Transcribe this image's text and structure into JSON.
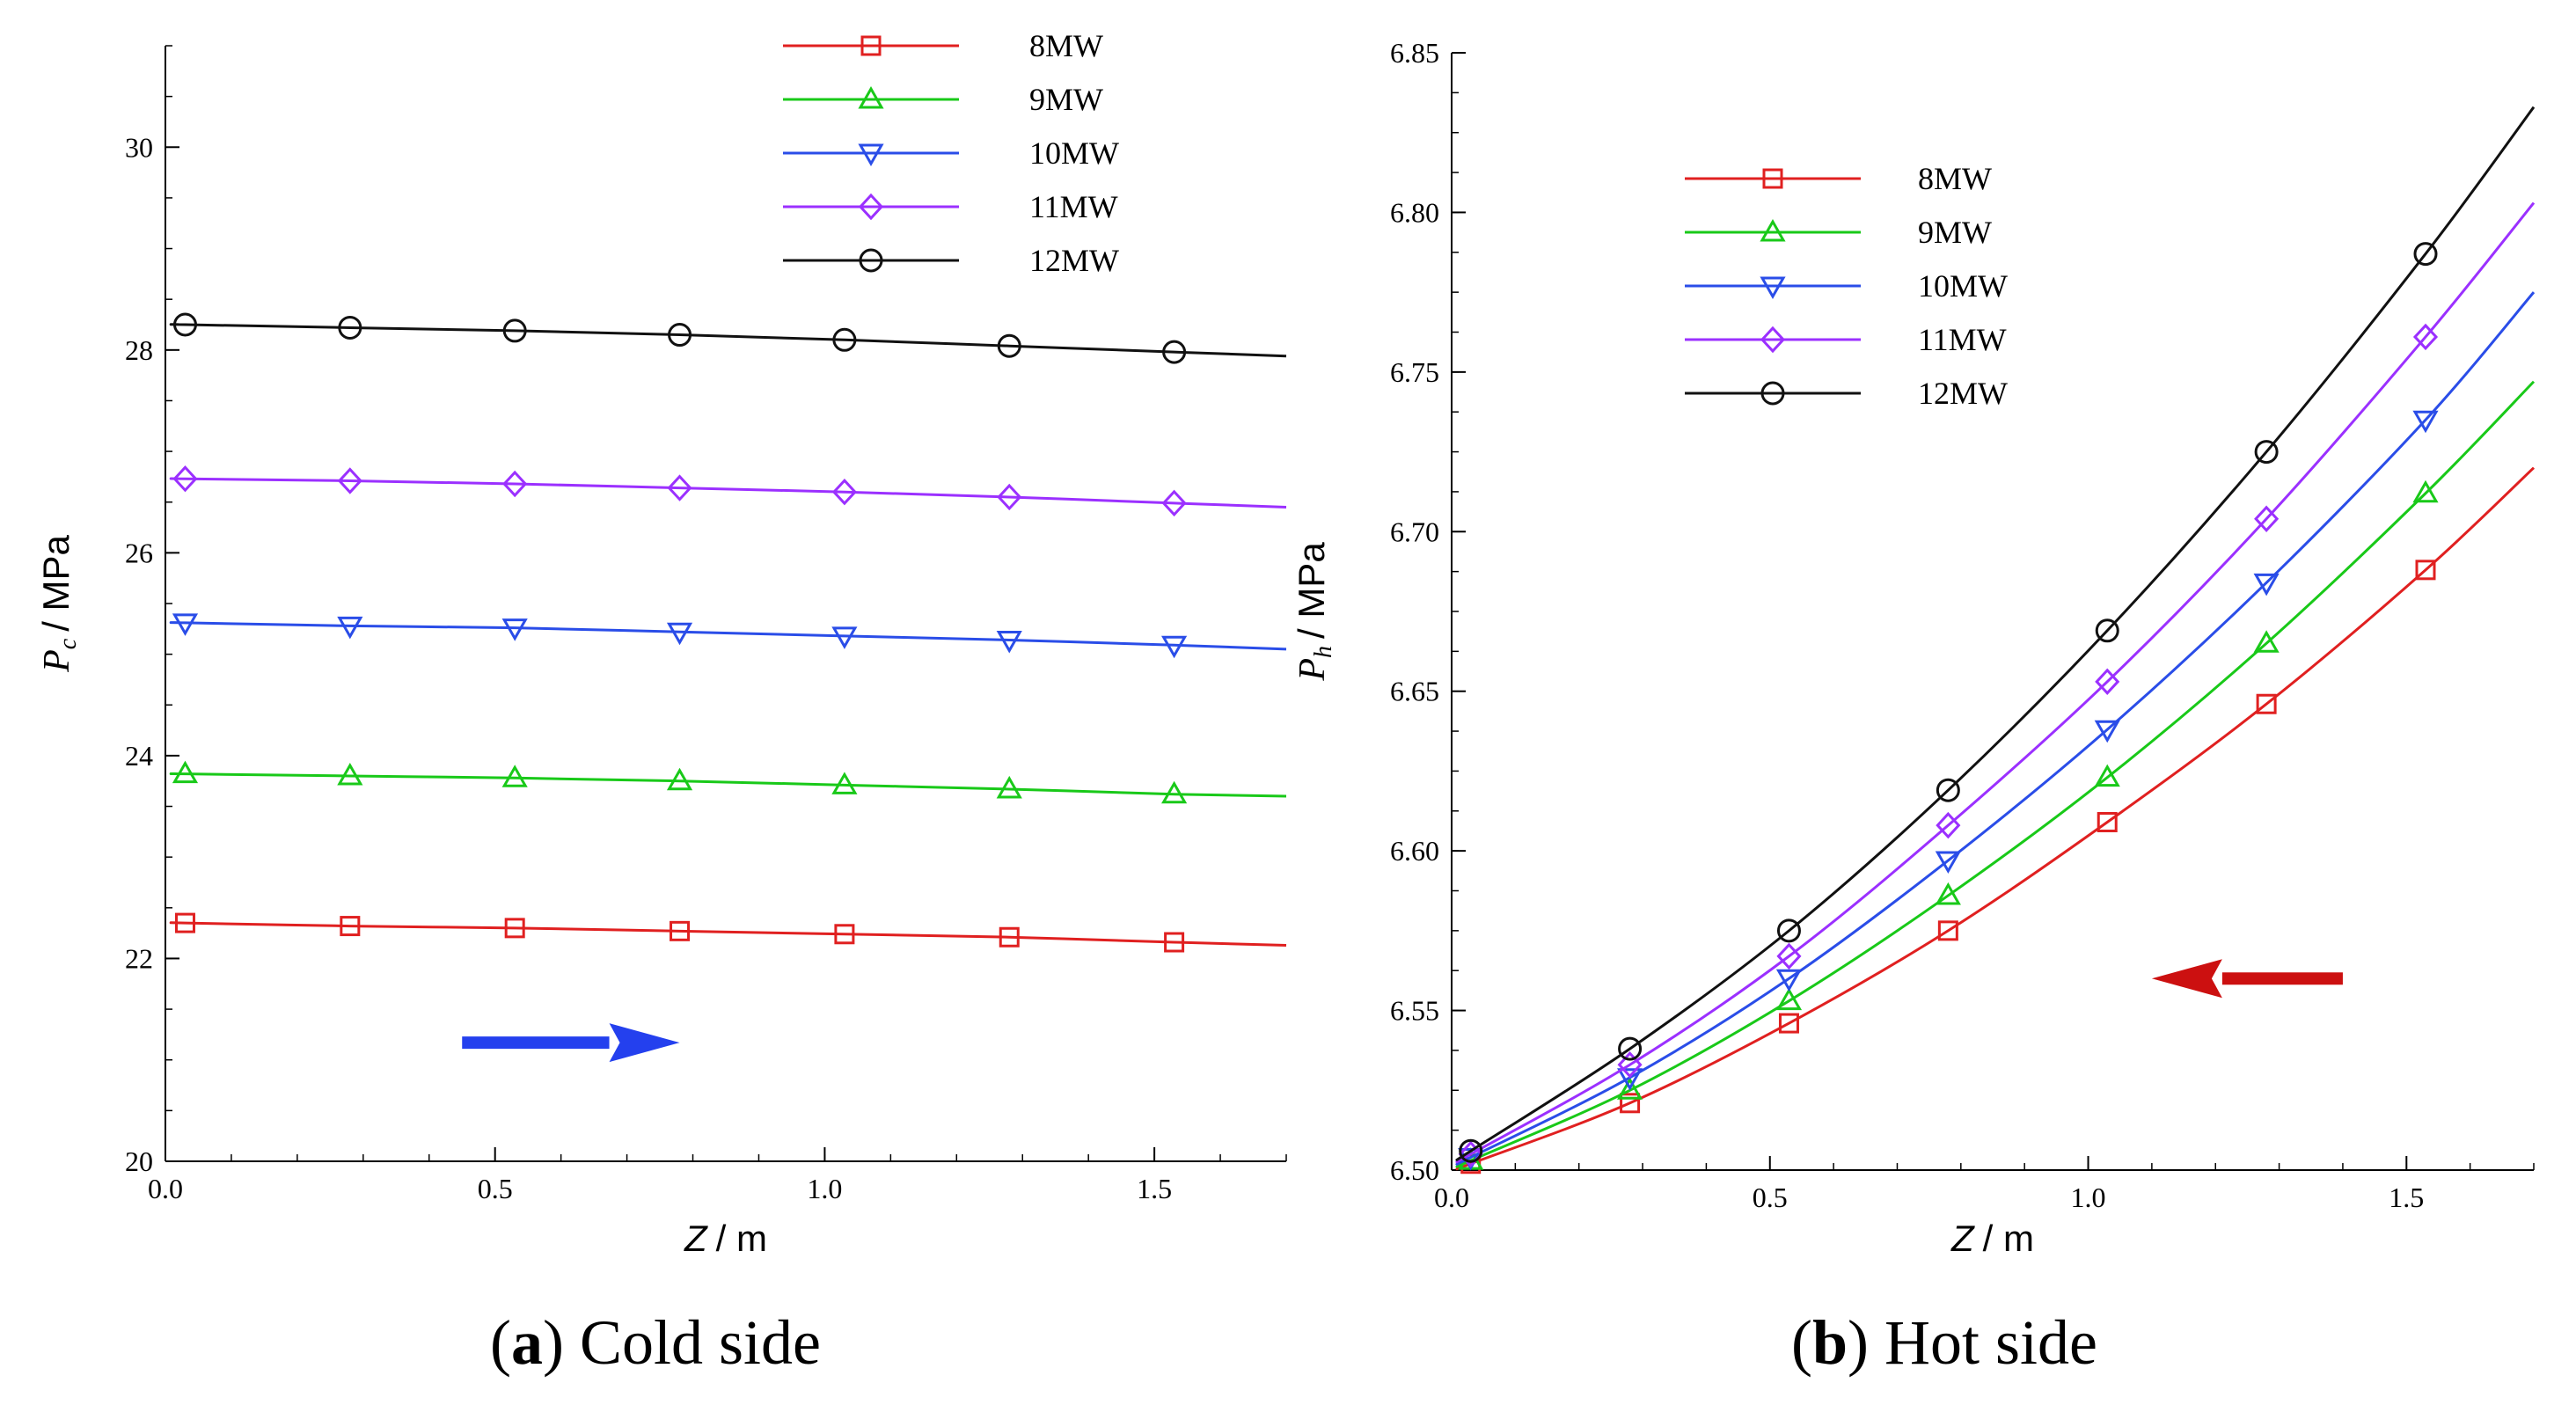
{
  "chart_data": [
    {
      "type": "line",
      "panel": "a",
      "caption_letter": "a",
      "caption_text": "Cold side",
      "xlabel": "Z / m",
      "ylabel": "P_c / MPa",
      "ylabel_main": "P",
      "ylabel_sub": "c",
      "ylabel_unit": "/ MPa",
      "xlabel_main": "Z",
      "xlabel_unit": "/ m",
      "xlim": [
        0.0,
        1.7
      ],
      "ylim": [
        20,
        31
      ],
      "xticks": [
        "0.0",
        "0.5",
        "1.0",
        "1.5"
      ],
      "yticks": [
        "20",
        "22",
        "24",
        "26",
        "28",
        "30"
      ],
      "x": [
        0.03,
        0.28,
        0.53,
        0.78,
        1.03,
        1.28,
        1.53
      ],
      "series": [
        {
          "name": "8MW",
          "color": "#e02020",
          "marker": "square",
          "y": [
            22.35,
            22.32,
            22.3,
            22.27,
            22.24,
            22.21,
            22.16
          ],
          "end_y": 22.13
        },
        {
          "name": "9MW",
          "color": "#19c919",
          "marker": "triangle-up",
          "y": [
            23.82,
            23.8,
            23.78,
            23.75,
            23.71,
            23.67,
            23.62
          ],
          "end_y": 23.6
        },
        {
          "name": "10MW",
          "color": "#2a4de8",
          "marker": "triangle-down",
          "y": [
            25.31,
            25.28,
            25.26,
            25.22,
            25.18,
            25.14,
            25.09
          ],
          "end_y": 25.05
        },
        {
          "name": "11MW",
          "color": "#9b30ff",
          "marker": "diamond",
          "y": [
            26.73,
            26.71,
            26.68,
            26.64,
            26.6,
            26.55,
            26.49
          ],
          "end_y": 26.45
        },
        {
          "name": "12MW",
          "color": "#111111",
          "marker": "circle",
          "y": [
            28.25,
            28.22,
            28.19,
            28.15,
            28.1,
            28.04,
            27.98
          ],
          "end_y": 27.94
        }
      ],
      "legend_position": "top-right",
      "arrow": {
        "direction": "right",
        "color": "#2440ee",
        "from": [
          0.45,
          21.17
        ],
        "to": [
          0.78,
          21.17
        ]
      }
    },
    {
      "type": "line",
      "panel": "b",
      "caption_letter": "b",
      "caption_text": "Hot side",
      "xlabel": "Z / m",
      "ylabel": "P_h / MPa",
      "ylabel_main": "P",
      "ylabel_sub": "h",
      "ylabel_unit": "/ MPa",
      "xlabel_main": "Z",
      "xlabel_unit": "/ m",
      "xlim": [
        0.0,
        1.7
      ],
      "ylim": [
        6.5,
        6.85
      ],
      "xticks": [
        "0.0",
        "0.5",
        "1.0",
        "1.5"
      ],
      "yticks": [
        "6.50",
        "6.55",
        "6.60",
        "6.65",
        "6.70",
        "6.75",
        "6.80",
        "6.85"
      ],
      "x": [
        0.03,
        0.28,
        0.53,
        0.78,
        1.03,
        1.28,
        1.53
      ],
      "series": [
        {
          "name": "8MW",
          "color": "#e02020",
          "marker": "square",
          "y": [
            6.502,
            6.521,
            6.546,
            6.575,
            6.609,
            6.646,
            6.688
          ],
          "end_y": 6.72
        },
        {
          "name": "9MW",
          "color": "#19c919",
          "marker": "triangle-up",
          "y": [
            6.503,
            6.525,
            6.553,
            6.586,
            6.623,
            6.665,
            6.712
          ],
          "end_y": 6.747
        },
        {
          "name": "10MW",
          "color": "#2a4de8",
          "marker": "triangle-down",
          "y": [
            6.504,
            6.529,
            6.56,
            6.597,
            6.638,
            6.684,
            6.735
          ],
          "end_y": 6.775
        },
        {
          "name": "11MW",
          "color": "#9b30ff",
          "marker": "diamond",
          "y": [
            6.505,
            6.533,
            6.567,
            6.608,
            6.653,
            6.704,
            6.761
          ],
          "end_y": 6.803
        },
        {
          "name": "12MW",
          "color": "#111111",
          "marker": "circle",
          "y": [
            6.506,
            6.538,
            6.575,
            6.619,
            6.669,
            6.725,
            6.787
          ],
          "end_y": 6.833
        }
      ],
      "legend_position": "top-left",
      "arrow": {
        "direction": "left",
        "color": "#cc1010",
        "from": [
          1.4,
          6.56
        ],
        "to": [
          1.1,
          6.56
        ]
      }
    }
  ]
}
